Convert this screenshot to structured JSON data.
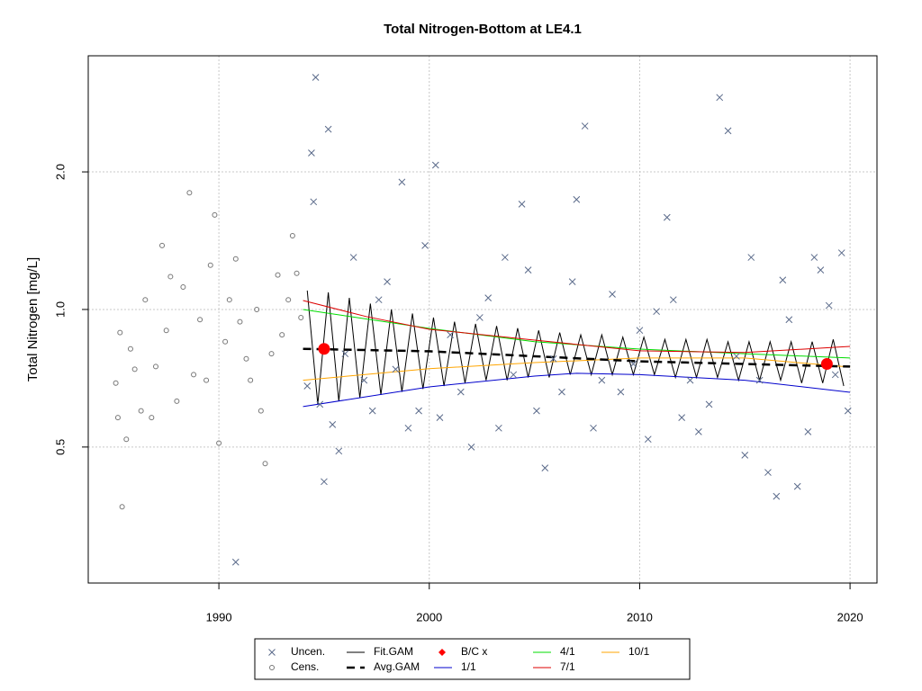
{
  "chart_data": {
    "type": "scatter",
    "title": "Total Nitrogen-Bottom at LE4.1",
    "y_label": "Total Nitrogen [mg/L]",
    "y_log": true,
    "grid": true,
    "legend": "bottom",
    "xlim": [
      1983.79,
      2021.28
    ],
    "xticks": [
      1990,
      2000,
      2010,
      2020
    ],
    "ylim": [
      0.252,
      3.59
    ],
    "yticks": [
      0.5,
      {
        "value": 1,
        "label": "1.0"
      },
      {
        "value": 2,
        "label": "2.0"
      }
    ],
    "series": [
      {
        "name": "Uncen.",
        "color": "#5a6a8a",
        "style": "x",
        "x": [
          1990.8,
          1994.2,
          1994.4,
          1994.5,
          1994.6,
          1994.8,
          1995.0,
          1995.2,
          1995.4,
          1995.7,
          1996.0,
          1996.4,
          1996.9,
          1997.3,
          1997.6,
          1998.0,
          1998.4,
          1998.7,
          1999.0,
          1999.5,
          1999.8,
          2000.3,
          2000.5,
          2001.0,
          2001.5,
          2002.0,
          2002.4,
          2002.8,
          2003.3,
          2003.6,
          2004.0,
          2004.4,
          2004.7,
          2005.1,
          2005.5,
          2005.9,
          2006.3,
          2006.8,
          2007.0,
          2007.4,
          2007.8,
          2008.2,
          2008.7,
          2009.1,
          2009.7,
          2010.0,
          2010.4,
          2010.8,
          2011.3,
          2011.6,
          2012.0,
          2012.4,
          2012.8,
          2013.3,
          2013.8,
          2014.2,
          2014.6,
          2015.0,
          2015.3,
          2015.7,
          2016.1,
          2016.5,
          2016.8,
          2017.1,
          2017.5,
          2018.0,
          2018.3,
          2018.6,
          2019.0,
          2019.3,
          2019.6,
          2019.9
        ],
        "values": [
          0.28,
          0.68,
          2.2,
          1.72,
          3.22,
          0.62,
          0.42,
          2.48,
          0.56,
          0.49,
          0.8,
          1.3,
          0.7,
          0.6,
          1.05,
          1.15,
          0.74,
          1.9,
          0.55,
          0.6,
          1.38,
          2.07,
          0.58,
          0.88,
          0.66,
          0.5,
          0.96,
          1.06,
          0.55,
          1.3,
          0.72,
          1.7,
          1.22,
          0.6,
          0.45,
          0.78,
          0.66,
          1.15,
          1.74,
          2.52,
          0.55,
          0.7,
          1.08,
          0.66,
          0.76,
          0.9,
          0.52,
          0.99,
          1.59,
          1.05,
          0.58,
          0.7,
          0.54,
          0.62,
          2.91,
          2.46,
          0.79,
          0.48,
          1.3,
          0.7,
          0.44,
          0.39,
          1.16,
          0.95,
          0.41,
          0.54,
          1.3,
          1.22,
          1.02,
          0.72,
          1.33,
          0.6
        ]
      },
      {
        "name": "Cens.",
        "color": "#777777",
        "style": "o",
        "x": [
          1985.1,
          1985.2,
          1985.3,
          1985.4,
          1985.6,
          1985.8,
          1986.0,
          1986.3,
          1986.5,
          1986.8,
          1987.0,
          1987.3,
          1987.5,
          1987.7,
          1988.0,
          1988.3,
          1988.6,
          1988.8,
          1989.1,
          1989.4,
          1989.6,
          1989.8,
          1990.0,
          1990.3,
          1990.5,
          1990.8,
          1991.0,
          1991.3,
          1991.5,
          1991.8,
          1992.0,
          1992.2,
          1992.5,
          1992.8,
          1993.0,
          1993.3,
          1993.5,
          1993.7,
          1993.9
        ],
        "values": [
          0.69,
          0.58,
          0.89,
          0.37,
          0.52,
          0.82,
          0.74,
          0.6,
          1.05,
          0.58,
          0.75,
          1.38,
          0.9,
          1.18,
          0.63,
          1.12,
          1.8,
          0.72,
          0.95,
          0.7,
          1.25,
          1.61,
          0.51,
          0.85,
          1.05,
          1.29,
          0.94,
          0.78,
          0.7,
          1.0,
          0.6,
          0.46,
          0.8,
          1.19,
          0.88,
          1.05,
          1.45,
          1.2,
          0.96
        ]
      },
      {
        "name": "Fit.GAM",
        "color": "#000000",
        "style": "line",
        "x": [
          1994.2,
          1994.7,
          1995.2,
          1995.7,
          1996.2,
          1996.7,
          1997.2,
          1997.7,
          1998.2,
          1998.7,
          1999.2,
          1999.7,
          2000.2,
          2000.7,
          2001.2,
          2001.7,
          2002.2,
          2002.7,
          2003.2,
          2003.7,
          2004.2,
          2004.7,
          2005.2,
          2005.7,
          2006.2,
          2006.7,
          2007.2,
          2007.7,
          2008.2,
          2008.7,
          2009.2,
          2009.7,
          2010.2,
          2010.7,
          2011.2,
          2011.7,
          2012.2,
          2012.7,
          2013.2,
          2013.7,
          2014.2,
          2014.7,
          2015.2,
          2015.7,
          2016.2,
          2016.7,
          2017.2,
          2017.7,
          2018.2,
          2018.7,
          2019.2,
          2019.7
        ],
        "values": [
          1.1,
          0.62,
          1.09,
          0.63,
          1.06,
          0.64,
          1.03,
          0.65,
          1.0,
          0.66,
          0.98,
          0.67,
          0.96,
          0.68,
          0.94,
          0.69,
          0.93,
          0.7,
          0.92,
          0.7,
          0.91,
          0.71,
          0.9,
          0.71,
          0.89,
          0.72,
          0.88,
          0.72,
          0.88,
          0.72,
          0.87,
          0.72,
          0.87,
          0.72,
          0.86,
          0.71,
          0.86,
          0.71,
          0.86,
          0.71,
          0.85,
          0.7,
          0.85,
          0.7,
          0.85,
          0.7,
          0.85,
          0.69,
          0.85,
          0.69,
          0.86,
          0.68
        ]
      },
      {
        "name": "Avg.GAM",
        "color": "#000000",
        "style": "dashed",
        "x": [
          1994,
          2000,
          2005,
          2010,
          2015,
          2020
        ],
        "values": [
          0.82,
          0.81,
          0.79,
          0.77,
          0.76,
          0.75
        ]
      },
      {
        "name": "B/C x",
        "color": "#ff0000",
        "style": "dot",
        "x": [
          1995.0,
          2018.9
        ],
        "values": [
          0.82,
          0.76
        ]
      },
      {
        "name": "1/1",
        "color": "#0000cc",
        "style": "line",
        "x": [
          1994,
          2000,
          2005,
          2007,
          2010,
          2015,
          2020
        ],
        "values": [
          0.613,
          0.677,
          0.715,
          0.725,
          0.72,
          0.7,
          0.659
        ]
      },
      {
        "name": "4/1",
        "color": "#00dd00",
        "style": "line",
        "x": [
          1994,
          2000,
          2005,
          2010,
          2015,
          2020
        ],
        "values": [
          1.0,
          0.909,
          0.85,
          0.819,
          0.8,
          0.783
        ]
      },
      {
        "name": "7/1",
        "color": "#dd0000",
        "style": "line",
        "x": [
          1994,
          1997,
          2000,
          2005,
          2010,
          2015,
          2020
        ],
        "values": [
          1.046,
          0.965,
          0.905,
          0.857,
          0.812,
          0.805,
          0.83
        ]
      },
      {
        "name": "10/1",
        "color": "#ffa500",
        "style": "line",
        "x": [
          1994,
          2000,
          2005,
          2010,
          2015,
          2020
        ],
        "values": [
          0.7,
          0.742,
          0.765,
          0.783,
          0.783,
          0.748
        ]
      }
    ]
  }
}
